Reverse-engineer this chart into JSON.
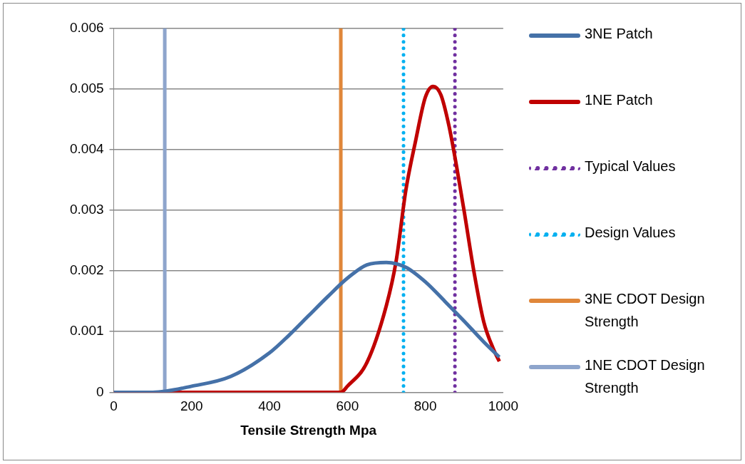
{
  "chart_data": {
    "type": "line",
    "xlabel": "Tensile Strength Mpa",
    "xlim": [
      0,
      1000
    ],
    "xticks": [
      0,
      200,
      400,
      600,
      800,
      1000
    ],
    "ylim": [
      0,
      0.006
    ],
    "yticks": [
      0,
      0.001,
      0.002,
      0.003,
      0.004,
      0.005,
      0.006
    ],
    "grid": "y",
    "legend": "right",
    "marker": "none",
    "series": [
      {
        "name": "3NE Patch",
        "color": "#4571a8",
        "line_style": "solid",
        "x": [
          0,
          100,
          200,
          300,
          400,
          450,
          500,
          550,
          600,
          650,
          700,
          750,
          800,
          850,
          900,
          950,
          990
        ],
        "values": [
          0,
          0,
          0.0001,
          0.00026,
          0.00065,
          0.00094,
          0.00126,
          0.00158,
          0.00188,
          0.0021,
          0.00214,
          0.00206,
          0.00182,
          0.0015,
          0.00117,
          0.00083,
          0.00058
        ]
      },
      {
        "name": "1NE Patch",
        "color": "#c00000",
        "line_style": "solid",
        "x": [
          0,
          100,
          200,
          300,
          400,
          500,
          550,
          583,
          600,
          650,
          700,
          725,
          750,
          775,
          800,
          820,
          840,
          860,
          880,
          900,
          925,
          950,
          975,
          990
        ],
        "values": [
          0,
          0,
          0,
          0,
          0,
          0,
          0,
          0,
          0.0001,
          0.00049,
          0.00143,
          0.00216,
          0.00333,
          0.00414,
          0.00486,
          0.00504,
          0.0049,
          0.00441,
          0.00373,
          0.00297,
          0.00198,
          0.00116,
          0.00071,
          0.00051
        ]
      },
      {
        "name": "Typical Values",
        "color": "#7030a0",
        "line_style": "dotted",
        "x": [
          876,
          876
        ],
        "values": [
          0,
          0.006
        ]
      },
      {
        "name": "Design Values",
        "color": "#00b0f0",
        "line_style": "dotted",
        "x": [
          744,
          744
        ],
        "values": [
          0,
          0.006
        ]
      },
      {
        "name": "3NE CDOT Design Strength",
        "color": "#e0873a",
        "line_style": "solid",
        "x": [
          583,
          583
        ],
        "values": [
          0,
          0.006
        ]
      },
      {
        "name": "1NE CDOT Design Strength",
        "color": "#8ea5cc",
        "line_style": "solid",
        "x": [
          131,
          131
        ],
        "values": [
          0,
          0.006
        ]
      }
    ]
  }
}
